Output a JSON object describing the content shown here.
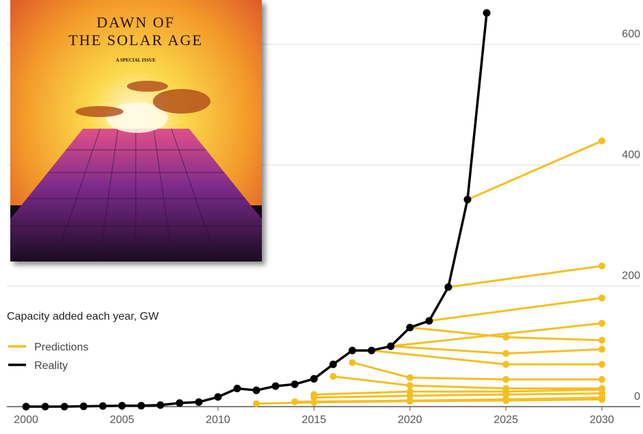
{
  "cover": {
    "title_lines": [
      "DAWN OF",
      "THE SOLAR AGE"
    ],
    "subtitle": "A SPECIAL ISSUE"
  },
  "chart_data": {
    "type": "line",
    "y_label": "Capacity added each year, GW",
    "xlim": [
      1999,
      2032
    ],
    "xticks": [
      2000,
      2005,
      2010,
      2015,
      2020,
      2025,
      2030
    ],
    "ylim": [
      0,
      670
    ],
    "yticks": [
      0,
      200,
      400,
      600
    ],
    "grid": true,
    "series": [
      {
        "name": "Predictions",
        "color": "#f4bf22",
        "lines": [
          {
            "x": [
              2023,
              2030
            ],
            "values": [
              343,
              440
            ]
          },
          {
            "x": [
              2022,
              2030
            ],
            "values": [
              198,
              233
            ]
          },
          {
            "x": [
              2021,
              2030
            ],
            "values": [
              142,
              180
            ]
          },
          {
            "x": [
              2020,
              2025,
              2030
            ],
            "values": [
              131,
              115,
              110
            ]
          },
          {
            "x": [
              2019,
              2030
            ],
            "values": [
              100,
              138
            ]
          },
          {
            "x": [
              2019,
              2025,
              2030
            ],
            "values": [
              100,
              88,
              95
            ]
          },
          {
            "x": [
              2018,
              2025,
              2030
            ],
            "values": [
              93,
              70,
              70
            ]
          },
          {
            "x": [
              2017,
              2020,
              2025,
              2030
            ],
            "values": [
              73,
              48,
              45,
              45
            ]
          },
          {
            "x": [
              2016,
              2020,
              2025,
              2030
            ],
            "values": [
              50,
              35,
              30,
              30
            ]
          },
          {
            "x": [
              2015,
              2020,
              2025,
              2030
            ],
            "values": [
              20,
              25,
              25,
              28
            ]
          },
          {
            "x": [
              2015,
              2020,
              2025,
              2030
            ],
            "values": [
              15,
              18,
              20,
              22
            ]
          },
          {
            "x": [
              2014,
              2020,
              2025,
              2030
            ],
            "values": [
              8,
              10,
              12,
              15
            ]
          },
          {
            "x": [
              2012,
              2015,
              2020,
              2025,
              2030
            ],
            "values": [
              5,
              7,
              9,
              10,
              12
            ]
          }
        ]
      },
      {
        "name": "Reality",
        "color": "#000000",
        "x": [
          2000,
          2001,
          2002,
          2003,
          2004,
          2005,
          2006,
          2007,
          2008,
          2009,
          2010,
          2011,
          2012,
          2013,
          2014,
          2015,
          2016,
          2017,
          2018,
          2019,
          2020,
          2021,
          2022,
          2023,
          2024
        ],
        "values": [
          0,
          0,
          0,
          0.5,
          1,
          1.5,
          1.5,
          2.5,
          6,
          7.5,
          16,
          30,
          27,
          34,
          37,
          46,
          70,
          93,
          93,
          100,
          131,
          142,
          198,
          343,
          652
        ]
      }
    ]
  }
}
